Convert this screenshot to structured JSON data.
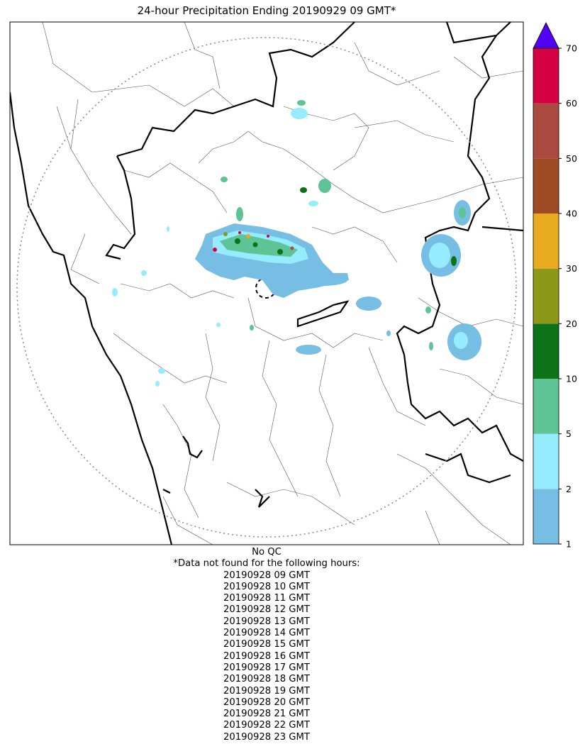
{
  "title": "24-hour Precipitation Ending 20190929 09 GMT*",
  "colorbar": {
    "ticks": [
      "1",
      "2",
      "5",
      "10",
      "20",
      "30",
      "40",
      "50",
      "60",
      "70"
    ],
    "colors": [
      "#77bee4",
      "#96ecff",
      "#5ec496",
      "#0c7319",
      "#8c9818",
      "#e8aa1e",
      "#9e4a25",
      "#aa4a40",
      "#d40043"
    ],
    "extend_color": "#5200f5"
  },
  "notes": {
    "qc": "No QC",
    "missing_header": "*Data not found for the following hours:",
    "missing_hours": [
      "20190928 09 GMT",
      "20190928 10 GMT",
      "20190928 11 GMT",
      "20190928 12 GMT",
      "20190928 13 GMT",
      "20190928 14 GMT",
      "20190928 15 GMT",
      "20190928 16 GMT",
      "20190928 17 GMT",
      "20190928 18 GMT",
      "20190928 19 GMT",
      "20190928 20 GMT",
      "20190928 21 GMT",
      "20190928 22 GMT",
      "20190928 23 GMT"
    ]
  }
}
